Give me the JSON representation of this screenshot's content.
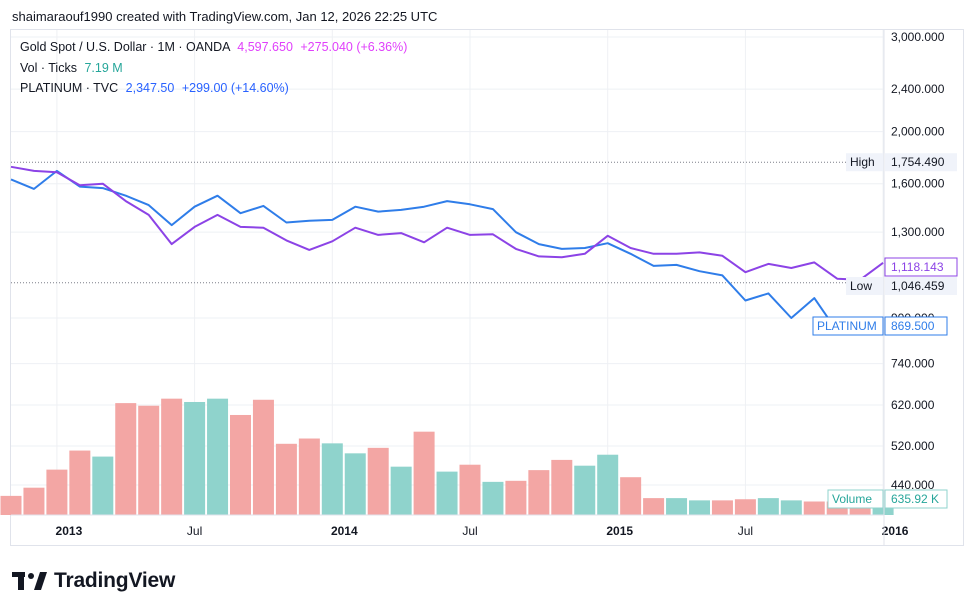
{
  "header": {
    "credit": "shaimaraouf1990 created with TradingView.com, Jan 12, 2026 22:25 UTC"
  },
  "legend": {
    "gold": {
      "name": "Gold Spot / U.S. Dollar · 1M · OANDA",
      "price": "4,597.650",
      "change": "+275.040 (+6.36%)"
    },
    "vol": {
      "name": "Vol · Ticks",
      "value": "7.19 M"
    },
    "platinum": {
      "name": "PLATINUM · TVC",
      "price": "2,347.50",
      "change": "+299.00 (+14.60%)"
    }
  },
  "footer": {
    "brand": "TradingView"
  },
  "colors": {
    "gold": "#8c43e6",
    "platinum": "#2f7de9",
    "vol_up": "#8fd3cc",
    "vol_down": "#f3a6a4",
    "grid": "#eef0f4",
    "axis_text": "#131722"
  },
  "chart_data": {
    "type": "line",
    "title": "Gold Spot / U.S. Dollar · 1M · OANDA vs PLATINUM · TVC",
    "xlabel": "",
    "ylabel": "",
    "x_ticks": [
      "2013",
      "Jul",
      "2014",
      "Jul",
      "2015",
      "Jul",
      "2016"
    ],
    "y_ticks": [
      "3,000.000",
      "2,400.000",
      "2,000.000",
      "1,600.000",
      "1,300.000",
      "900.000",
      "740.000",
      "620.000",
      "520.000",
      "440.000"
    ],
    "ylim": [
      400,
      3000
    ],
    "scale": "log",
    "months": [
      "2012-11",
      "2012-12",
      "2013-01",
      "2013-02",
      "2013-03",
      "2013-04",
      "2013-05",
      "2013-06",
      "2013-07",
      "2013-08",
      "2013-09",
      "2013-10",
      "2013-11",
      "2013-12",
      "2014-01",
      "2014-02",
      "2014-03",
      "2014-04",
      "2014-05",
      "2014-06",
      "2014-07",
      "2014-08",
      "2014-09",
      "2014-10",
      "2014-11",
      "2014-12",
      "2015-01",
      "2015-02",
      "2015-03",
      "2015-04",
      "2015-05",
      "2015-06",
      "2015-07",
      "2015-08",
      "2015-09",
      "2015-10",
      "2015-11",
      "2015-12",
      "2016-01"
    ],
    "series": [
      {
        "name": "Gold Spot / U.S. Dollar",
        "values": [
          1720,
          1690,
          1680,
          1590,
          1600,
          1485,
          1400,
          1235,
          1330,
          1400,
          1330,
          1325,
          1255,
          1205,
          1250,
          1325,
          1285,
          1295,
          1245,
          1325,
          1285,
          1288,
          1210,
          1172,
          1168,
          1185,
          1280,
          1215,
          1185,
          1185,
          1192,
          1175,
          1095,
          1135,
          1115,
          1142,
          1065,
          1060,
          1140
        ]
      },
      {
        "name": "PLATINUM",
        "values": [
          1630,
          1565,
          1690,
          1580,
          1570,
          1520,
          1460,
          1340,
          1450,
          1520,
          1410,
          1455,
          1355,
          1365,
          1370,
          1450,
          1420,
          1430,
          1450,
          1485,
          1465,
          1435,
          1300,
          1235,
          1210,
          1215,
          1240,
          1185,
          1125,
          1130,
          1100,
          1080,
          970,
          1000,
          900,
          980,
          850,
          null,
          null
        ]
      },
      {
        "name": "Vol · Ticks",
        "values": [
          420,
          435,
          470,
          510,
          497,
          625,
          618,
          637,
          628,
          637,
          594,
          634,
          525,
          537,
          526,
          504,
          516,
          476,
          553,
          466,
          480,
          446,
          448,
          469,
          490,
          478,
          501,
          455,
          416,
          416,
          412,
          412,
          414,
          416,
          412,
          410,
          410,
          410,
          411
        ],
        "up": [
          false,
          false,
          false,
          false,
          true,
          false,
          false,
          false,
          true,
          true,
          false,
          false,
          false,
          false,
          true,
          true,
          false,
          true,
          false,
          true,
          false,
          true,
          false,
          false,
          false,
          true,
          true,
          false,
          false,
          true,
          true,
          false,
          false,
          true,
          true,
          false,
          false,
          false,
          true
        ]
      }
    ],
    "markers": {
      "high": {
        "label": "High",
        "value": "1,754.490",
        "price": 1754.49
      },
      "low": {
        "label": "Low",
        "value": "1,046.459",
        "price": 1046.459
      },
      "gold_last": {
        "value": "1,118.143",
        "price": 1118.143
      },
      "platinum_last": {
        "label": "PLATINUM",
        "value": "869.500",
        "price": 869.5
      },
      "volume_last": {
        "label": "Volume",
        "value": "635.92 K"
      }
    }
  }
}
